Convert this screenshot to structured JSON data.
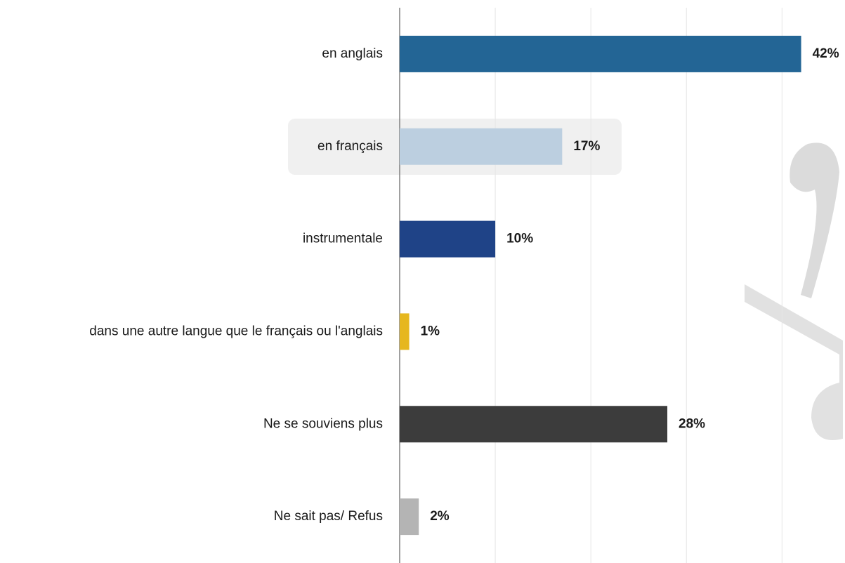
{
  "chart_data": {
    "type": "bar",
    "orientation": "horizontal",
    "categories": [
      "en anglais",
      "en français",
      "instrumentale",
      "dans une autre langue que le français ou l'anglais",
      "Ne se souviens plus",
      "Ne sait pas/ Refus"
    ],
    "values": [
      42,
      17,
      10,
      1,
      28,
      2
    ],
    "value_labels": [
      "42%",
      "17%",
      "10%",
      "1%",
      "28%",
      "2%"
    ],
    "colors": [
      "#236595",
      "#bccfe0",
      "#1f4387",
      "#e6b71e",
      "#3c3c3c",
      "#b4b4b4"
    ],
    "xlim": [
      0,
      46
    ],
    "xticks": [
      0,
      10,
      20,
      30,
      40
    ],
    "grid": true
  }
}
